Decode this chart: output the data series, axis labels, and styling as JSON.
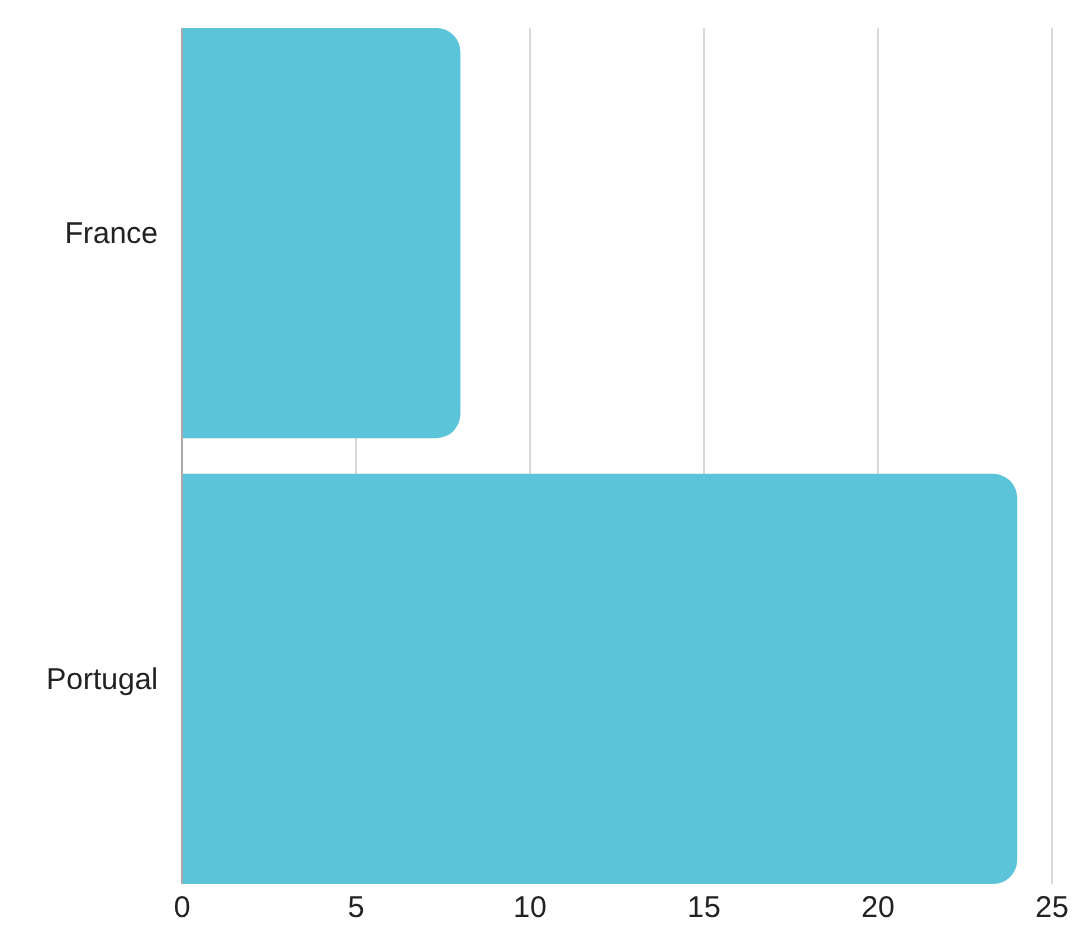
{
  "chart_data": {
    "type": "bar",
    "orientation": "horizontal",
    "categories": [
      "France",
      "Portugal"
    ],
    "values": [
      8,
      24
    ],
    "color": "#5bc4d8",
    "xlim": [
      0,
      25
    ],
    "xticks": [
      0,
      5,
      10,
      15,
      20,
      25
    ],
    "grid": "x"
  }
}
